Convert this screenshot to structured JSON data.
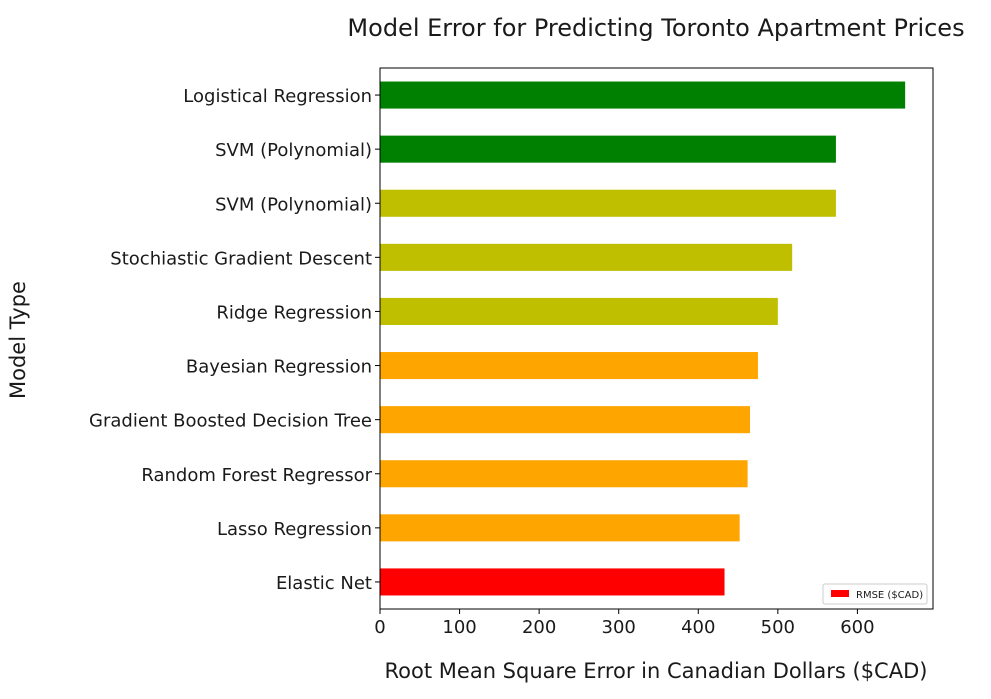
{
  "chart_data": {
    "type": "bar",
    "orientation": "horizontal",
    "title": "Model Error for Predicting Toronto Apartment Prices",
    "xlabel": "Root Mean Square Error in Canadian Dollars ($CAD)",
    "ylabel": "Model Type",
    "xlim": [
      0,
      695
    ],
    "xticks": [
      0,
      100,
      200,
      300,
      400,
      500,
      600
    ],
    "categories": [
      "Logistical Regression",
      "SVM (Polynomial)",
      "SVM (Polynomial)",
      "Stochiastic Gradient Descent",
      "Ridge Regression",
      "Bayesian Regression",
      "Gradient Boosted Decision Tree",
      "Random Forest Regressor",
      "Lasso Regression",
      "Elastic Net"
    ],
    "series": [
      {
        "name": "RMSE ($CAD)",
        "values": [
          660,
          573,
          573,
          518,
          500,
          475,
          465,
          462,
          452,
          433
        ]
      }
    ],
    "bar_colors": [
      "#008000",
      "#008000",
      "#bfbf00",
      "#bfbf00",
      "#bfbf00",
      "#ffa500",
      "#ffa500",
      "#ffa500",
      "#ffa500",
      "#ff0000"
    ],
    "legend": {
      "placement": "lower-right",
      "swatch_color": "#ff0000"
    },
    "grid": false
  }
}
